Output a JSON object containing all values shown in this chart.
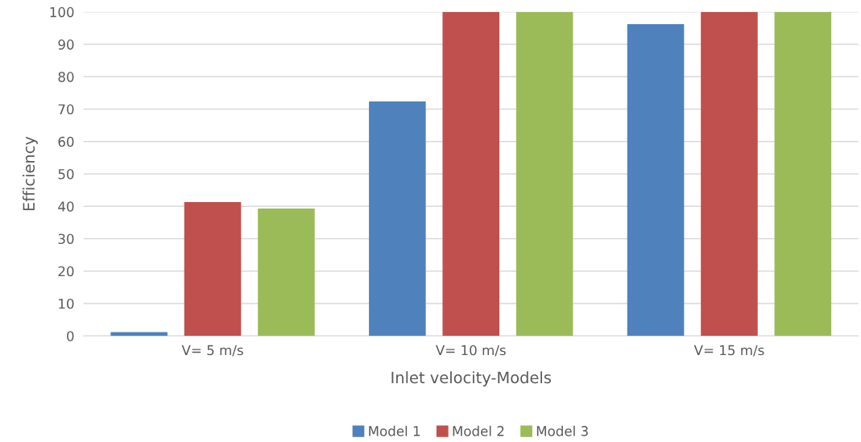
{
  "chart_data": {
    "type": "bar",
    "xlabel": "Inlet velocity-Models",
    "ylabel": "Efficiency",
    "categories": [
      "V= 5 m/s",
      "V= 10 m/s",
      "V= 15 m/s"
    ],
    "series": [
      {
        "name": "Model 1",
        "color": "#4f81bd",
        "values": [
          1.2,
          72.4,
          96.2
        ]
      },
      {
        "name": "Model 2",
        "color": "#c0504d",
        "values": [
          41.3,
          100,
          100
        ]
      },
      {
        "name": "Model 3",
        "color": "#9bbb59",
        "values": [
          39.3,
          100,
          100
        ]
      }
    ],
    "ylim": [
      0,
      100
    ],
    "yticks": [
      0,
      10,
      20,
      30,
      40,
      50,
      60,
      70,
      80,
      90,
      100
    ],
    "grid": "y",
    "legend": "bottom"
  }
}
